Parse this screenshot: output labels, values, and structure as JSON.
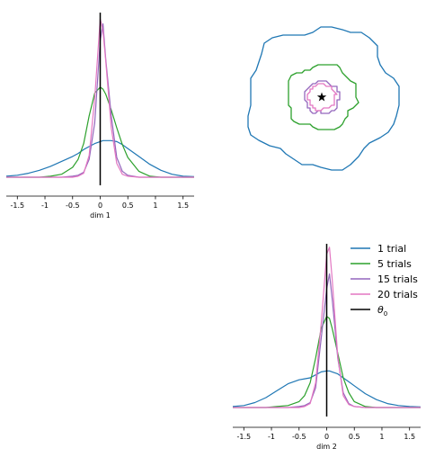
{
  "chart_data": [
    {
      "type": "line",
      "panel": "marginal-dim1",
      "xlabel": "dim 1",
      "xticks": [
        -1.5,
        -1,
        -0.5,
        0,
        0.5,
        1,
        1.5
      ],
      "xtick_labels": [
        "-1.5",
        "-1",
        "-0.5",
        "0",
        "0.5",
        "1",
        "1.5"
      ],
      "xlim": [
        -1.7,
        1.7
      ],
      "x": [
        -1.7,
        -1.5,
        -1.3,
        -1.1,
        -0.9,
        -0.7,
        -0.5,
        -0.4,
        -0.3,
        -0.2,
        -0.1,
        0,
        0.05,
        0.1,
        0.2,
        0.3,
        0.4,
        0.5,
        0.7,
        0.9,
        1.1,
        1.3,
        1.5,
        1.7
      ],
      "series": [
        {
          "name": "1 trial",
          "color": "#1f77b4",
          "values": [
            0.01,
            0.02,
            0.04,
            0.07,
            0.11,
            0.16,
            0.21,
            0.24,
            0.28,
            0.31,
            0.34,
            0.36,
            0.37,
            0.37,
            0.37,
            0.36,
            0.33,
            0.29,
            0.21,
            0.13,
            0.07,
            0.03,
            0.01,
            0.005
          ]
        },
        {
          "name": "5 trials",
          "color": "#2ca02c",
          "values": [
            0,
            0,
            0,
            0,
            0.01,
            0.03,
            0.1,
            0.18,
            0.34,
            0.62,
            0.85,
            0.91,
            0.89,
            0.84,
            0.68,
            0.5,
            0.33,
            0.2,
            0.06,
            0.01,
            0,
            0,
            0,
            0
          ]
        },
        {
          "name": "15 trials",
          "color": "#9467bd",
          "values": [
            0,
            0,
            0,
            0,
            0,
            0,
            0.01,
            0.02,
            0.05,
            0.18,
            0.55,
            1.38,
            1.55,
            1.2,
            0.62,
            0.2,
            0.06,
            0.02,
            0,
            0,
            0,
            0,
            0,
            0
          ]
        },
        {
          "name": "20 trials",
          "color": "#e377c2",
          "values": [
            0,
            0,
            0,
            0,
            0,
            0,
            0,
            0.01,
            0.04,
            0.22,
            0.8,
            1.6,
            1.48,
            1.18,
            0.5,
            0.14,
            0.03,
            0.01,
            0,
            0,
            0,
            0,
            0,
            0
          ]
        }
      ],
      "reference_line": {
        "name": "θ₀",
        "x": 0,
        "color": "#000000"
      }
    },
    {
      "type": "line",
      "panel": "marginal-dim2",
      "xlabel": "dim 2",
      "xticks": [
        -1.5,
        -1,
        -0.5,
        0,
        0.5,
        1,
        1.5
      ],
      "xtick_labels": [
        "-1.5",
        "-1",
        "-0.5",
        "0",
        "0.5",
        "1",
        "1.5"
      ],
      "xlim": [
        -1.7,
        1.7
      ],
      "x": [
        -1.7,
        -1.5,
        -1.3,
        -1.1,
        -0.9,
        -0.7,
        -0.5,
        -0.4,
        -0.3,
        -0.2,
        -0.1,
        0,
        0.05,
        0.1,
        0.2,
        0.3,
        0.4,
        0.5,
        0.7,
        0.9,
        1.1,
        1.3,
        1.5,
        1.7
      ],
      "series": [
        {
          "name": "1 trial",
          "color": "#1f77b4",
          "values": [
            0.01,
            0.02,
            0.05,
            0.1,
            0.17,
            0.24,
            0.28,
            0.29,
            0.3,
            0.33,
            0.36,
            0.37,
            0.37,
            0.36,
            0.34,
            0.3,
            0.26,
            0.22,
            0.14,
            0.08,
            0.04,
            0.02,
            0.01,
            0.005
          ]
        },
        {
          "name": "5 trials",
          "color": "#2ca02c",
          "values": [
            0,
            0,
            0,
            0,
            0.01,
            0.02,
            0.06,
            0.12,
            0.25,
            0.5,
            0.8,
            0.92,
            0.9,
            0.8,
            0.55,
            0.3,
            0.15,
            0.06,
            0.01,
            0,
            0,
            0,
            0,
            0
          ]
        },
        {
          "name": "15 trials",
          "color": "#9467bd",
          "values": [
            0,
            0,
            0,
            0,
            0,
            0,
            0.01,
            0.02,
            0.05,
            0.2,
            0.7,
            1.2,
            1.35,
            1.1,
            0.5,
            0.15,
            0.04,
            0.01,
            0,
            0,
            0,
            0,
            0,
            0
          ]
        },
        {
          "name": "20 trials",
          "color": "#e377c2",
          "values": [
            0,
            0,
            0,
            0,
            0,
            0,
            0,
            0.01,
            0.04,
            0.25,
            0.85,
            1.55,
            1.62,
            1.3,
            0.52,
            0.12,
            0.03,
            0.01,
            0,
            0,
            0,
            0,
            0,
            0
          ]
        }
      ],
      "reference_line": {
        "name": "θ₀",
        "x": 0,
        "color": "#000000"
      }
    },
    {
      "type": "contour",
      "panel": "joint-dim1-dim2",
      "axes_visible": false,
      "marker": {
        "shape": "star",
        "x": 0,
        "y": 0,
        "color": "#000000"
      },
      "contours": [
        {
          "name": "1 trial",
          "color": "#1f77b4",
          "radius": 1.3
        },
        {
          "name": "5 trials",
          "color": "#2ca02c",
          "radius": 0.6
        },
        {
          "name": "15 trials",
          "color": "#9467bd",
          "radius": 0.3
        },
        {
          "name": "20 trials",
          "color": "#e377c2",
          "radius": 0.24
        }
      ]
    }
  ],
  "legend": {
    "placement": "right",
    "entries": [
      {
        "label": "1 trial",
        "color": "#1f77b4"
      },
      {
        "label": "5 trials",
        "color": "#2ca02c"
      },
      {
        "label": "15 trials",
        "color": "#9467bd"
      },
      {
        "label": "20 trials",
        "color": "#e377c2"
      }
    ],
    "theta_label": "θ",
    "theta_sub": "0",
    "theta_color": "#000000"
  }
}
